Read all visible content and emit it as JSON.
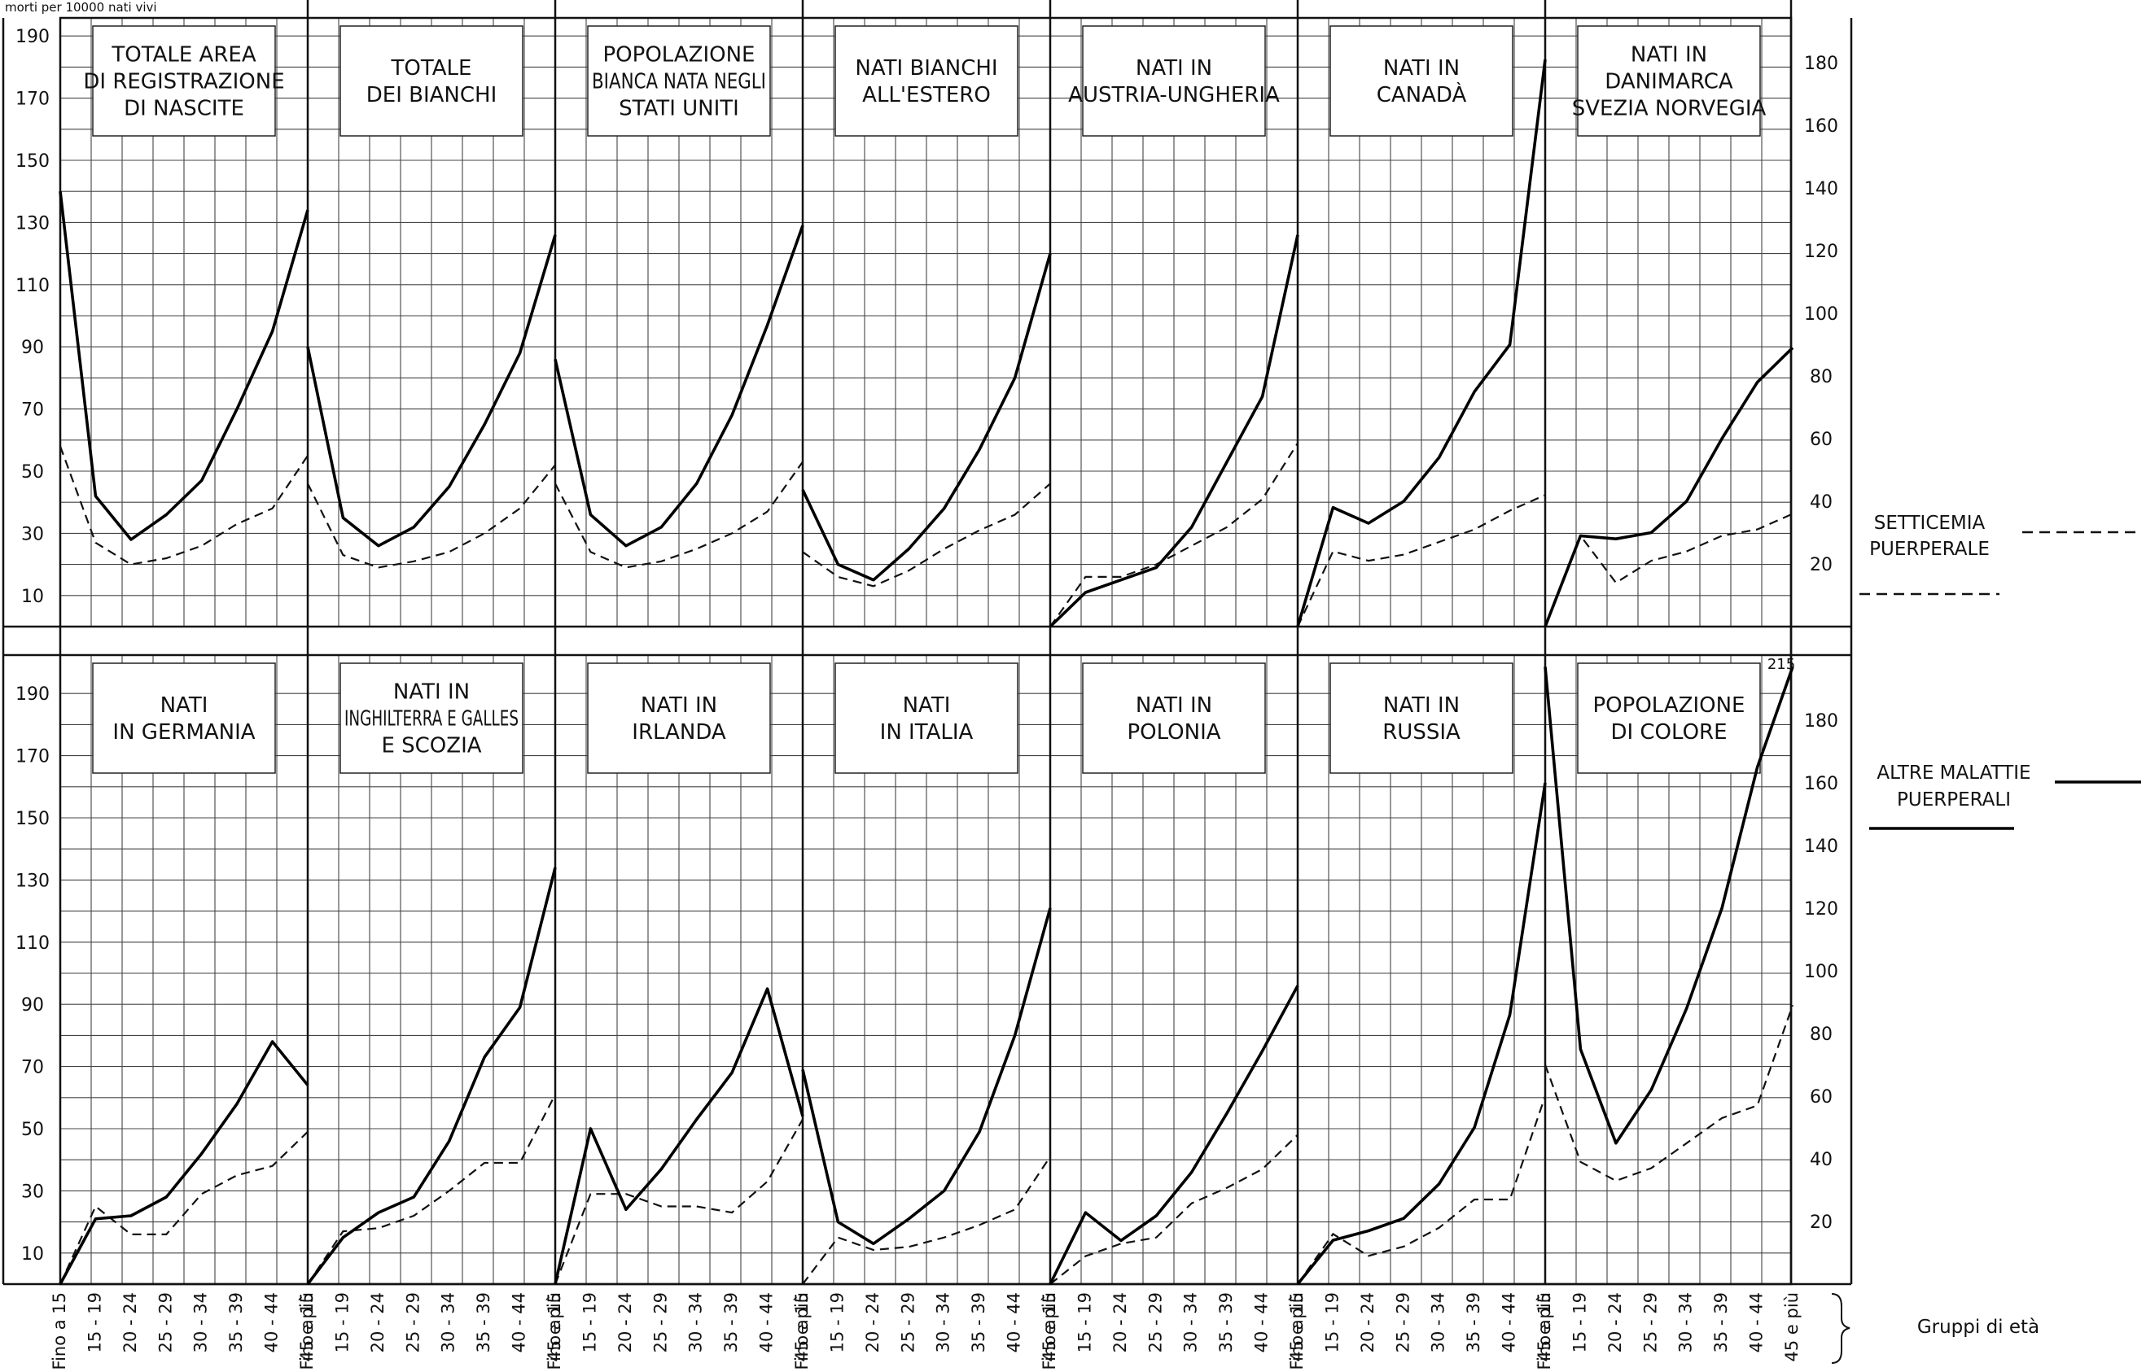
{
  "header_text": "morti per 10000 nati vivi",
  "x_title": "Gruppi di età",
  "legend": [
    {
      "label": [
        "SETTICEMIA",
        "PUERPERALE"
      ],
      "style": "dashed"
    },
    {
      "label": [
        "ALTRE MALATTIE",
        "PUERPERALI"
      ],
      "style": "solid"
    }
  ],
  "chart_data": {
    "type": "line",
    "categories": [
      "Fino a 15",
      "15 - 19",
      "20 - 24",
      "25 - 29",
      "30 - 34",
      "35 - 39",
      "40 - 44",
      "45 e più"
    ],
    "left_axis_ticks": [
      10,
      30,
      50,
      70,
      90,
      110,
      130,
      150,
      170,
      190
    ],
    "right_axis_ticks": [
      20,
      40,
      60,
      80,
      100,
      120,
      140,
      160,
      180
    ],
    "annotation": "215",
    "series_names": [
      "SETTICEMIA PUERPERALE",
      "ALTRE MALATTIE PUERPERALI"
    ],
    "panels": [
      {
        "title": [
          "TOTALE AREA",
          "DI REGISTRAZIONE",
          "DI NASCITE"
        ],
        "scale": "left",
        "solid": [
          140,
          42,
          28,
          36,
          47,
          70,
          95,
          134
        ],
        "dashed": [
          58,
          27,
          20,
          22,
          26,
          33,
          38,
          55
        ]
      },
      {
        "title": [
          "TOTALE",
          "DEI BIANCHI"
        ],
        "scale": "left",
        "solid": [
          90,
          35,
          26,
          32,
          45,
          65,
          88,
          126
        ],
        "dashed": [
          46,
          23,
          19,
          21,
          24,
          30,
          38,
          52
        ]
      },
      {
        "title": [
          "POPOLAZIONE",
          "BIANCA NATA NEGLI",
          "STATI UNITI"
        ],
        "scale": "left",
        "solid": [
          86,
          36,
          26,
          32,
          46,
          68,
          97,
          129
        ],
        "dashed": [
          46,
          24,
          19,
          21,
          25,
          30,
          37,
          53
        ]
      },
      {
        "title": [
          "NATI BIANCHI",
          "ALL'ESTERO"
        ],
        "scale": "left",
        "solid": [
          44,
          20,
          15,
          25,
          38,
          57,
          80,
          120
        ],
        "dashed": [
          24,
          16,
          13,
          18,
          25,
          31,
          36,
          46
        ]
      },
      {
        "title": [
          "NATI IN",
          "AUSTRIA-UNGHERIA"
        ],
        "scale": "left",
        "solid": [
          0,
          11,
          15,
          19,
          32,
          53,
          74,
          126
        ],
        "dashed": [
          0,
          16,
          16,
          20,
          26,
          32,
          41,
          59
        ]
      },
      {
        "title": [
          "NATI IN",
          "CANADÀ"
        ],
        "scale": "right",
        "solid": [
          0,
          38,
          33,
          40,
          54,
          75,
          90,
          181
        ],
        "dashed": [
          0,
          24,
          21,
          23,
          27,
          31,
          37,
          42
        ]
      },
      {
        "title": [
          "NATI IN",
          "DANIMARCA",
          "SVEZIA NORVEGIA"
        ],
        "scale": "right",
        "solid": [
          0,
          29,
          28,
          30,
          40,
          60,
          78,
          89
        ],
        "dashed": [
          0,
          29,
          14,
          21,
          24,
          29,
          31,
          36
        ]
      },
      {
        "title": [
          "NATI",
          "IN GERMANIA"
        ],
        "scale": "left",
        "solid": [
          0,
          21,
          22,
          28,
          42,
          58,
          78,
          64
        ],
        "dashed": [
          0,
          25,
          16,
          16,
          29,
          35,
          38,
          49
        ]
      },
      {
        "title": [
          "NATI IN",
          "INGHILTERRA E GALLES",
          "E SCOZIA"
        ],
        "scale": "left",
        "solid": [
          0,
          15,
          23,
          28,
          46,
          73,
          89,
          134
        ],
        "dashed": [
          0,
          17,
          18,
          22,
          30,
          39,
          39,
          61
        ]
      },
      {
        "title": [
          "NATI IN",
          "IRLANDA"
        ],
        "scale": "left",
        "solid": [
          0,
          50,
          24,
          37,
          53,
          68,
          95,
          54
        ],
        "dashed": [
          0,
          29,
          29,
          25,
          25,
          23,
          33,
          53
        ]
      },
      {
        "title": [
          "NATI",
          "IN ITALIA"
        ],
        "scale": "left",
        "solid": [
          69,
          20,
          13,
          21,
          30,
          49,
          80,
          121
        ],
        "dashed": [
          0,
          15,
          11,
          12,
          15,
          19,
          24,
          41
        ]
      },
      {
        "title": [
          "NATI IN",
          "POLONIA"
        ],
        "scale": "left",
        "solid": [
          0,
          23,
          14,
          22,
          36,
          55,
          75,
          96
        ],
        "dashed": [
          0,
          9,
          13,
          15,
          26,
          31,
          37,
          48
        ]
      },
      {
        "title": [
          "NATI IN",
          "RUSSIA"
        ],
        "scale": "right",
        "solid": [
          0,
          14,
          17,
          21,
          32,
          50,
          86,
          160
        ],
        "dashed": [
          0,
          16,
          9,
          12,
          18,
          27,
          27,
          60
        ]
      },
      {
        "title": [
          "POPOLAZIONE",
          "DI COLORE"
        ],
        "scale": "right",
        "solid": [
          197,
          75,
          45,
          62,
          88,
          120,
          165,
          197
        ],
        "dashed": [
          70,
          39,
          33,
          37,
          45,
          53,
          57,
          89
        ]
      }
    ]
  }
}
